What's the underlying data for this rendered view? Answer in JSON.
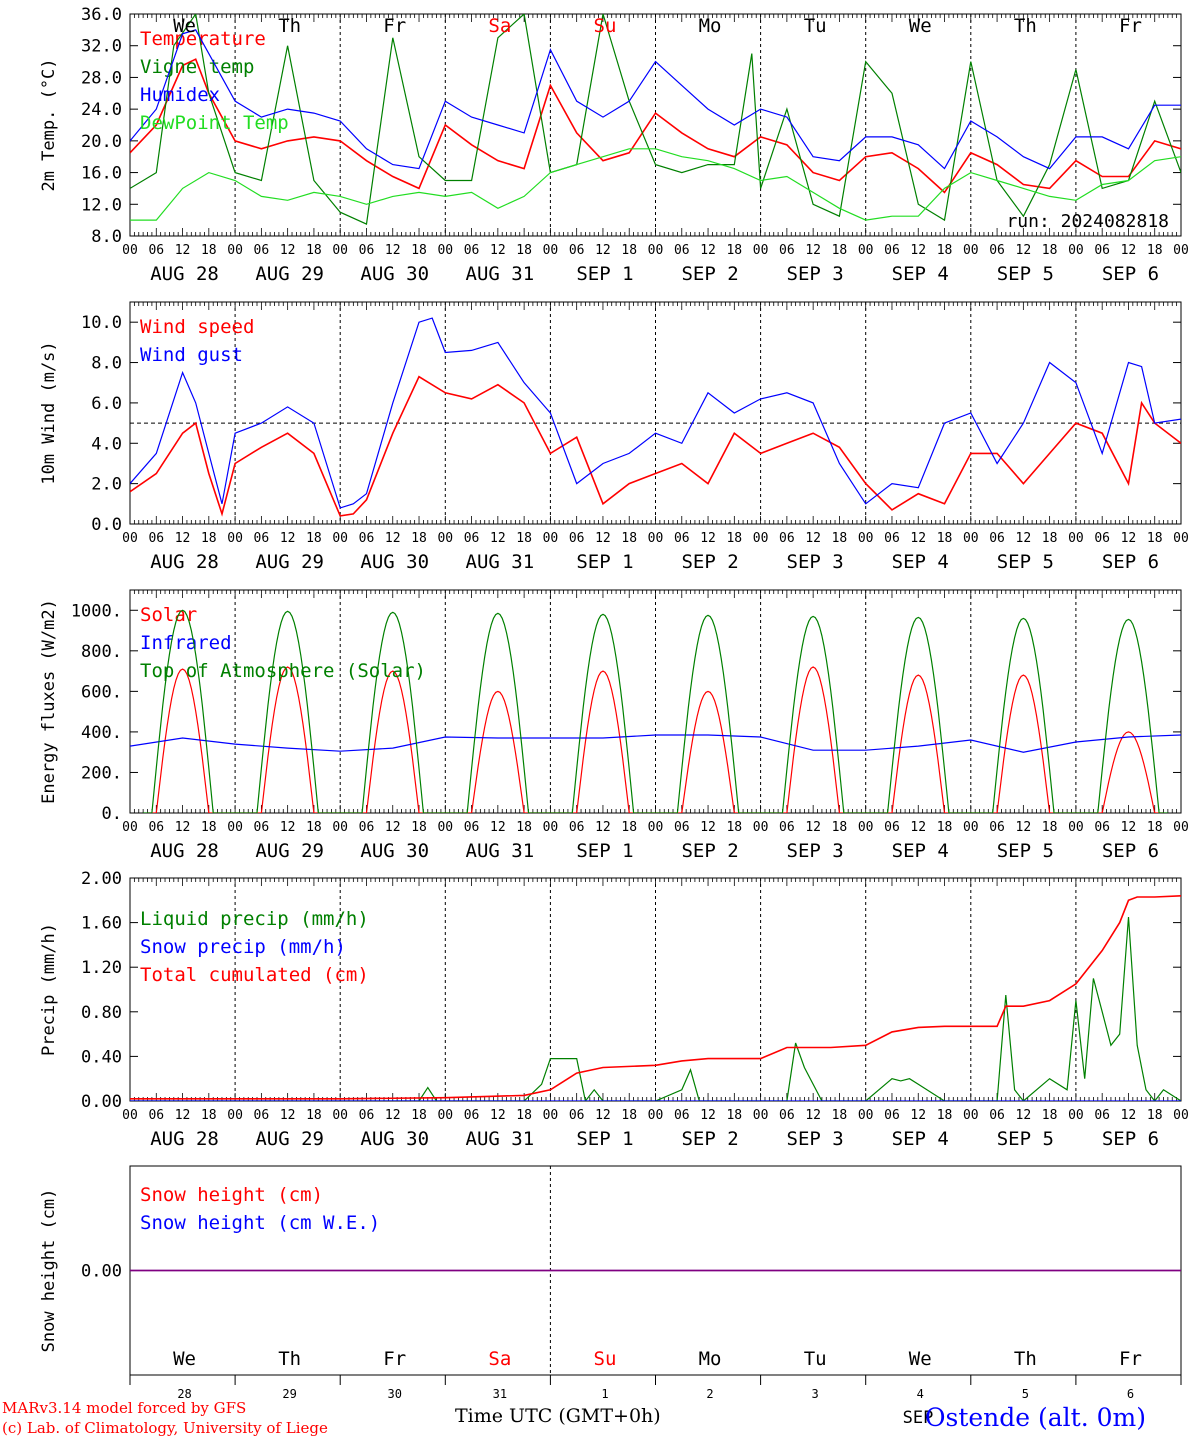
{
  "days_short": [
    "We",
    "Th",
    "Fr",
    "Sa",
    "Su",
    "Mo",
    "Tu",
    "We",
    "Th",
    "Fr"
  ],
  "days_color": [
    "#000000",
    "#000000",
    "#000000",
    "#ff0000",
    "#ff0000",
    "#000000",
    "#000000",
    "#000000",
    "#000000",
    "#000000"
  ],
  "date_labels": [
    "AUG 28",
    "AUG 29",
    "AUG 30",
    "AUG 31",
    "SEP  1",
    "SEP  2",
    "SEP  3",
    "SEP  4",
    "SEP  5",
    "SEP  6"
  ],
  "hour_ticks": [
    "00",
    "06",
    "12",
    "18"
  ],
  "colors": {
    "red": "#ff0000",
    "blue": "#0000ff",
    "green": "#008000",
    "lightgreen": "#22dd22",
    "purple": "#800080"
  },
  "chart_data": [
    {
      "type": "line",
      "ylabel": "2m Temp. (°C)",
      "ylim": [
        8.0,
        36.0
      ],
      "yticks": [
        "8.0",
        "12.0",
        "16.0",
        "20.0",
        "24.0",
        "28.0",
        "32.0",
        "36.0"
      ],
      "x_unit": "hours from AUG 28 00 UTC",
      "annotation": "run: 2024082818",
      "series": [
        {
          "name": "Temperature",
          "color": "#ff0000",
          "x": [
            0,
            6,
            12,
            15,
            18,
            24,
            30,
            36,
            42,
            48,
            54,
            60,
            66,
            72,
            78,
            84,
            90,
            96,
            102,
            108,
            114,
            120,
            126,
            132,
            138,
            144,
            150,
            156,
            162,
            168,
            174,
            180,
            186,
            192,
            198,
            204,
            210,
            216,
            222,
            228,
            234,
            240
          ],
          "y": [
            18.5,
            22.0,
            29.5,
            30.3,
            26,
            20,
            19,
            20,
            20.5,
            20.0,
            17.5,
            15.5,
            14.0,
            22.0,
            19.5,
            17.5,
            16.5,
            27.0,
            21.0,
            17.5,
            18.5,
            23.5,
            21.0,
            19.0,
            18.0,
            20.5,
            19.5,
            16.0,
            15.0,
            18.0,
            18.5,
            16.5,
            13.5,
            18.5,
            17.0,
            14.5,
            14.0,
            17.5,
            15.5,
            15.5,
            20.0,
            19.0
          ]
        },
        {
          "name": "Vigne temp",
          "color": "#008000",
          "x": [
            0,
            6,
            10,
            15,
            18,
            24,
            30,
            36,
            42,
            48,
            54,
            60,
            66,
            72,
            78,
            84,
            90,
            96,
            102,
            108,
            114,
            120,
            126,
            132,
            138,
            142,
            144,
            150,
            156,
            162,
            168,
            174,
            180,
            186,
            192,
            198,
            204,
            210,
            216,
            222,
            228,
            234,
            240
          ],
          "y": [
            14,
            16,
            32,
            36,
            26,
            16,
            15,
            32,
            15,
            11,
            9.5,
            33,
            18,
            15,
            15,
            33,
            36,
            16,
            17,
            36,
            25,
            17,
            16,
            17,
            17,
            31,
            14,
            24,
            12,
            10.5,
            30,
            26,
            12,
            10,
            30,
            15,
            10.5,
            17,
            29,
            14,
            15,
            25,
            16
          ]
        },
        {
          "name": "Humidex",
          "color": "#0000ff",
          "x": [
            0,
            6,
            12,
            15,
            18,
            24,
            30,
            36,
            42,
            48,
            54,
            60,
            66,
            72,
            78,
            84,
            90,
            96,
            102,
            108,
            114,
            120,
            126,
            132,
            138,
            144,
            150,
            156,
            162,
            168,
            174,
            180,
            186,
            192,
            198,
            204,
            210,
            216,
            222,
            228,
            234,
            240
          ],
          "y": [
            20,
            24,
            33.5,
            34.0,
            31,
            25,
            23,
            24,
            23.5,
            22.5,
            19,
            17,
            16.5,
            25,
            23,
            22,
            21,
            31.5,
            25,
            23,
            25,
            30,
            27,
            24,
            22,
            24,
            23,
            18,
            17.5,
            20.5,
            20.5,
            19.5,
            16.5,
            22.5,
            20.5,
            18,
            16.5,
            20.5,
            20.5,
            19,
            24.5,
            24.5
          ]
        },
        {
          "name": "DewPoint Temp",
          "color": "#22dd22",
          "x": [
            0,
            6,
            12,
            18,
            24,
            30,
            36,
            42,
            48,
            54,
            60,
            66,
            72,
            78,
            84,
            90,
            96,
            102,
            108,
            114,
            120,
            126,
            132,
            138,
            144,
            150,
            156,
            162,
            168,
            174,
            180,
            186,
            192,
            198,
            204,
            210,
            216,
            222,
            228,
            234,
            240
          ],
          "y": [
            10,
            10,
            14,
            16,
            15,
            13,
            12.5,
            13.5,
            13,
            12,
            13,
            13.5,
            13,
            13.5,
            11.5,
            13,
            16,
            17,
            18,
            19,
            19,
            18,
            17.5,
            16.5,
            15,
            15.5,
            13.5,
            11.5,
            10,
            10.5,
            10.5,
            14,
            16,
            15,
            14,
            13,
            12.5,
            14.5,
            15,
            17.5,
            18
          ]
        }
      ]
    },
    {
      "type": "line",
      "ylabel": "10m Wind (m/s)",
      "ylim": [
        0.0,
        11.0
      ],
      "yticks": [
        "0.0",
        "2.0",
        "4.0",
        "6.0",
        "8.0",
        "10.0"
      ],
      "x_unit": "hours from AUG 28 00 UTC",
      "reference_line": 5.0,
      "series": [
        {
          "name": "Wind speed",
          "color": "#ff0000",
          "x": [
            0,
            6,
            12,
            15,
            18,
            21,
            24,
            30,
            36,
            42,
            48,
            51,
            54,
            60,
            66,
            72,
            78,
            84,
            90,
            96,
            102,
            108,
            114,
            120,
            126,
            132,
            138,
            144,
            150,
            156,
            162,
            168,
            174,
            180,
            186,
            192,
            198,
            204,
            210,
            216,
            222,
            228,
            231,
            234,
            240
          ],
          "y": [
            1.6,
            2.5,
            4.5,
            5.0,
            2.5,
            0.5,
            3.0,
            3.8,
            4.5,
            3.5,
            0.4,
            0.5,
            1.2,
            4.5,
            7.3,
            6.5,
            6.2,
            6.9,
            6.0,
            3.5,
            4.3,
            1.0,
            2.0,
            2.5,
            3.0,
            2.0,
            4.5,
            3.5,
            4.0,
            4.5,
            3.8,
            2.0,
            0.7,
            1.5,
            1.0,
            3.5,
            3.5,
            2.0,
            3.5,
            5.0,
            4.5,
            2.0,
            6.0,
            5.0,
            4.0
          ]
        },
        {
          "name": "Wind gust",
          "color": "#0000ff",
          "x": [
            0,
            6,
            12,
            15,
            18,
            21,
            24,
            30,
            36,
            42,
            48,
            51,
            54,
            60,
            66,
            69,
            72,
            78,
            84,
            90,
            96,
            102,
            108,
            114,
            120,
            126,
            132,
            138,
            144,
            150,
            156,
            162,
            168,
            174,
            180,
            186,
            192,
            198,
            204,
            210,
            216,
            222,
            228,
            231,
            234,
            240
          ],
          "y": [
            2.0,
            3.5,
            7.5,
            6.0,
            3.5,
            1.0,
            4.5,
            5.0,
            5.8,
            5.0,
            0.8,
            1.0,
            1.5,
            6.0,
            10.0,
            10.2,
            8.5,
            8.6,
            9.0,
            7.0,
            5.5,
            2.0,
            3.0,
            3.5,
            4.5,
            4.0,
            6.5,
            5.5,
            6.2,
            6.5,
            6.0,
            3.0,
            1.0,
            2.0,
            1.8,
            5.0,
            5.5,
            3.0,
            5.0,
            8.0,
            7.0,
            3.5,
            8.0,
            7.8,
            5.0,
            5.2
          ]
        }
      ]
    },
    {
      "type": "line",
      "ylabel": "Energy fluxes (W/m2)",
      "ylim": [
        0,
        1100
      ],
      "yticks": [
        "0.",
        "200.",
        "400.",
        "600.",
        "800.",
        "1000."
      ],
      "x_unit": "hours from AUG 28 00 UTC",
      "series": [
        {
          "name": "Solar",
          "color": "#ff0000",
          "peaks": [
            710,
            720,
            700,
            600,
            700,
            600,
            720,
            680,
            680,
            400
          ]
        },
        {
          "name": "Infrared",
          "color": "#0000ff",
          "x": [
            0,
            12,
            24,
            36,
            48,
            60,
            72,
            84,
            96,
            108,
            120,
            132,
            144,
            156,
            168,
            180,
            192,
            204,
            216,
            228,
            240
          ],
          "y": [
            330,
            370,
            340,
            320,
            305,
            320,
            375,
            370,
            370,
            370,
            385,
            385,
            375,
            310,
            310,
            330,
            360,
            300,
            350,
            375,
            385
          ]
        },
        {
          "name": "Top of Atmosphere (Solar)",
          "color": "#008000",
          "peaks": [
            1000,
            995,
            990,
            985,
            980,
            975,
            970,
            965,
            960,
            955
          ]
        }
      ]
    },
    {
      "type": "line",
      "ylabel": "Precip (mm/h)",
      "ylim": [
        0.0,
        2.0
      ],
      "yticks": [
        "0.00",
        "0.40",
        "0.80",
        "1.20",
        "1.60",
        "2.00"
      ],
      "x_unit": "hours from AUG 28 00 UTC",
      "series": [
        {
          "name": "Liquid precip (mm/h)",
          "color": "#008000",
          "x": [
            0,
            12,
            24,
            66,
            68,
            70,
            90,
            94,
            96,
            102,
            104,
            106,
            108,
            120,
            126,
            128,
            130,
            132,
            150,
            152,
            154,
            158,
            168,
            174,
            176,
            178,
            180,
            186,
            192,
            198,
            200,
            202,
            204,
            210,
            214,
            216,
            218,
            220,
            222,
            224,
            226,
            228,
            230,
            232,
            234,
            236,
            240
          ],
          "y": [
            0,
            0,
            0,
            0,
            0.12,
            0,
            0,
            0.15,
            0.38,
            0.38,
            0,
            0.1,
            0,
            0,
            0.1,
            0.28,
            0,
            0,
            0,
            0.52,
            0.3,
            0,
            0,
            0.2,
            0.18,
            0.2,
            0.15,
            0,
            0,
            0,
            0.95,
            0.1,
            0,
            0.2,
            0.1,
            0.9,
            0.2,
            1.1,
            0.8,
            0.5,
            0.6,
            1.65,
            0.5,
            0.1,
            0,
            0.1,
            0
          ]
        },
        {
          "name": "Snow precip (mm/h)",
          "color": "#0000ff",
          "x": [
            0,
            240
          ],
          "y": [
            0,
            0
          ]
        },
        {
          "name": "Total cumulated (cm)",
          "color": "#ff0000",
          "x": [
            0,
            48,
            72,
            90,
            96,
            100,
            102,
            108,
            120,
            126,
            132,
            144,
            150,
            160,
            168,
            174,
            180,
            186,
            198,
            200,
            204,
            210,
            216,
            222,
            226,
            228,
            230,
            234,
            240
          ],
          "y": [
            0.02,
            0.02,
            0.03,
            0.05,
            0.1,
            0.2,
            0.25,
            0.3,
            0.32,
            0.36,
            0.38,
            0.38,
            0.48,
            0.48,
            0.5,
            0.62,
            0.66,
            0.67,
            0.67,
            0.85,
            0.85,
            0.9,
            1.05,
            1.35,
            1.6,
            1.8,
            1.83,
            1.83,
            1.84
          ]
        }
      ]
    },
    {
      "type": "line",
      "ylabel": "Snow height (cm)",
      "yticks": [
        "0.00"
      ],
      "x_unit": "hours from AUG 28 00 UTC",
      "bottom_day_numbers": [
        "28",
        "29",
        "30",
        "31",
        "1",
        "2",
        "3",
        "4",
        "5",
        "6"
      ],
      "month_label": "SEP",
      "series": [
        {
          "name": "Snow height (cm)",
          "color": "#ff0000",
          "x": [
            0,
            240
          ],
          "y": [
            0,
            0
          ]
        },
        {
          "name": "Snow height (cm W.E.)",
          "color": "#0000ff",
          "x": [
            0,
            240
          ],
          "y": [
            0,
            0
          ]
        }
      ]
    }
  ],
  "footer": {
    "model_line1": "MARv3.14 model forced by GFS",
    "model_line2": "(c) Lab. of Climatology, University of Liege",
    "xlabel": "Time UTC (GMT+0h)",
    "station": "Ostende (alt. 0m)"
  }
}
